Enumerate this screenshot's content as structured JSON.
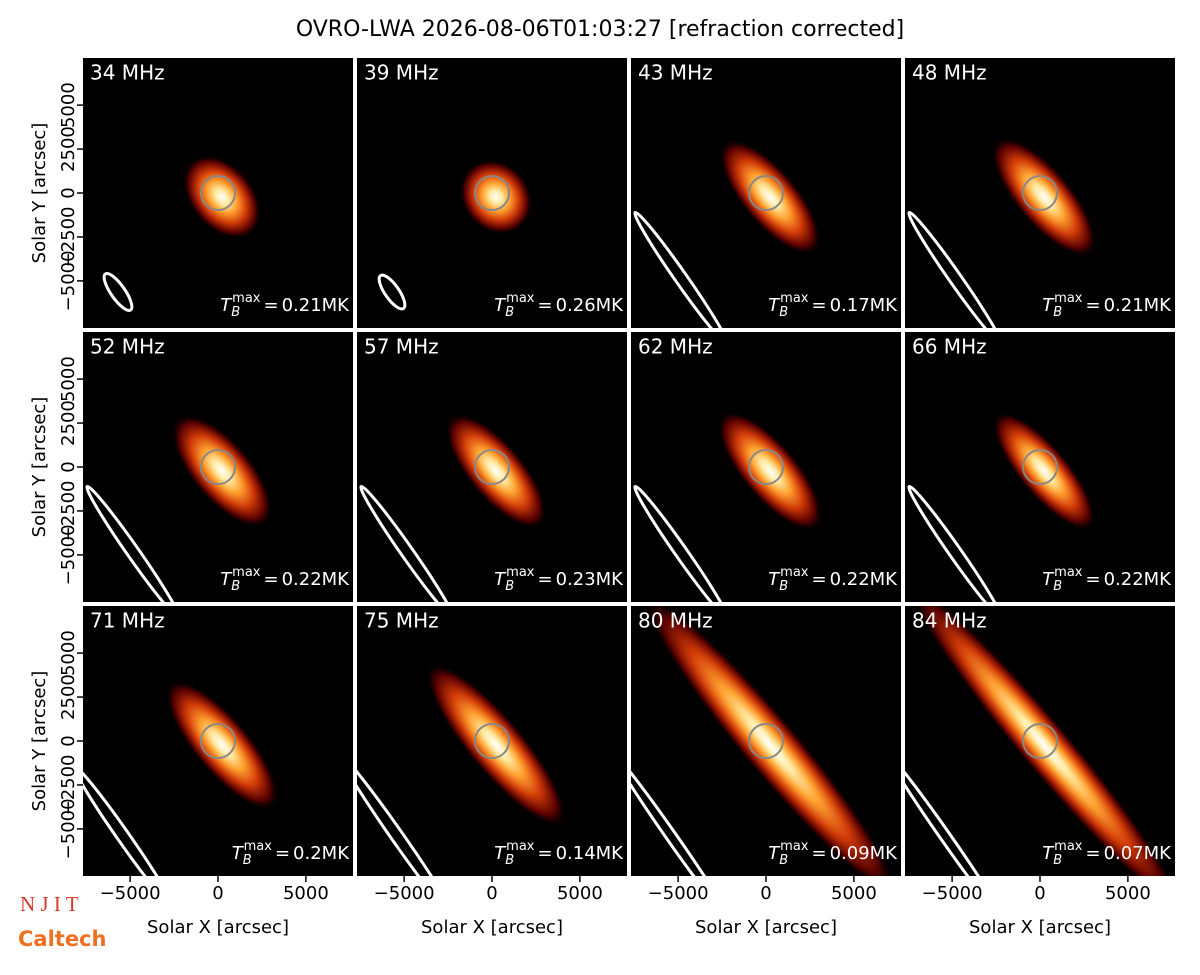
{
  "chart_data": {
    "type": "image-grid",
    "title": "OVRO-LWA 2026-08-06T01:03:27 [refraction corrected]",
    "xlabel": "Solar X [arcsec]",
    "ylabel": "Solar Y [arcsec]",
    "categories": [
      "34 MHz",
      "39 MHz",
      "43 MHz",
      "48 MHz",
      "52 MHz",
      "57 MHz",
      "62 MHz",
      "66 MHz",
      "71 MHz",
      "75 MHz",
      "80 MHz",
      "84 MHz"
    ],
    "values": [
      0.21,
      0.26,
      0.17,
      0.21,
      0.22,
      0.23,
      0.22,
      0.22,
      0.2,
      0.14,
      0.09,
      0.07
    ],
    "value_labels": [
      "0.21MK",
      "0.26MK",
      "0.17MK",
      "0.21MK",
      "0.22MK",
      "0.23MK",
      "0.22MK",
      "0.22MK",
      "0.2MK",
      "0.14MK",
      "0.09MK",
      "0.07MK"
    ],
    "value_symbol": "T",
    "value_subscript": "B",
    "value_superscript": "max",
    "value_equals": "=",
    "xlim": [
      -7680,
      7680
    ],
    "ylim": [
      -7680,
      7680
    ],
    "xticks": [
      {
        "value": -5000,
        "label": "−5000"
      },
      0,
      5000
    ],
    "yticks": [
      {
        "value": -5000,
        "label": "−5000"
      },
      {
        "value": -2500,
        "label": "−2500"
      },
      0,
      2500,
      5000
    ],
    "columns": 4
  },
  "logos": [
    "N J I T",
    "Caltech"
  ]
}
